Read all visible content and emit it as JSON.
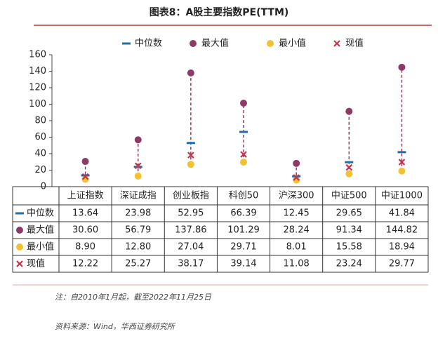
{
  "chart_data": {
    "type": "range-dot",
    "title": "图表8：A股主要指数PE(TTM)",
    "categories": [
      "上证指数",
      "深证成指",
      "创业板指",
      "科创50",
      "沪深300",
      "中证500",
      "中证1000"
    ],
    "series": [
      {
        "name": "中位数",
        "color": "#1f6fa8",
        "marker": "dash",
        "values": [
          13.64,
          23.98,
          52.95,
          66.39,
          12.45,
          29.65,
          41.84
        ],
        "value_labels": [
          "13.64",
          "23.98",
          "52.95",
          "66.39",
          "12.45",
          "29.65",
          "41.84"
        ]
      },
      {
        "name": "最大值",
        "color": "#8e3a66",
        "marker": "circle",
        "values": [
          30.6,
          56.79,
          137.86,
          101.29,
          28.24,
          91.34,
          144.82
        ],
        "value_labels": [
          "30.60",
          "56.79",
          "137.86",
          "101.29",
          "28.24",
          "91.34",
          "144.82"
        ]
      },
      {
        "name": "最小值",
        "color": "#f3c232",
        "marker": "circle",
        "values": [
          8.9,
          12.8,
          27.04,
          29.71,
          8.01,
          15.58,
          18.94
        ],
        "value_labels": [
          "8.90",
          "12.80",
          "27.04",
          "29.71",
          "8.01",
          "15.58",
          "18.94"
        ]
      },
      {
        "name": "现值",
        "color": "#c8324a",
        "marker": "cross",
        "values": [
          12.22,
          25.27,
          38.17,
          39.14,
          11.08,
          23.24,
          29.77
        ],
        "value_labels": [
          "12.22",
          "25.27",
          "38.17",
          "39.14",
          "11.08",
          "23.24",
          "29.77"
        ]
      }
    ],
    "ylim": [
      0,
      160
    ],
    "yticks": [
      0,
      20,
      40,
      60,
      80,
      100,
      120,
      140,
      160
    ],
    "note": "注：自2010年1月起，截至2022年11月25日",
    "source": "资料来源：Wind，华西证券研究所"
  }
}
